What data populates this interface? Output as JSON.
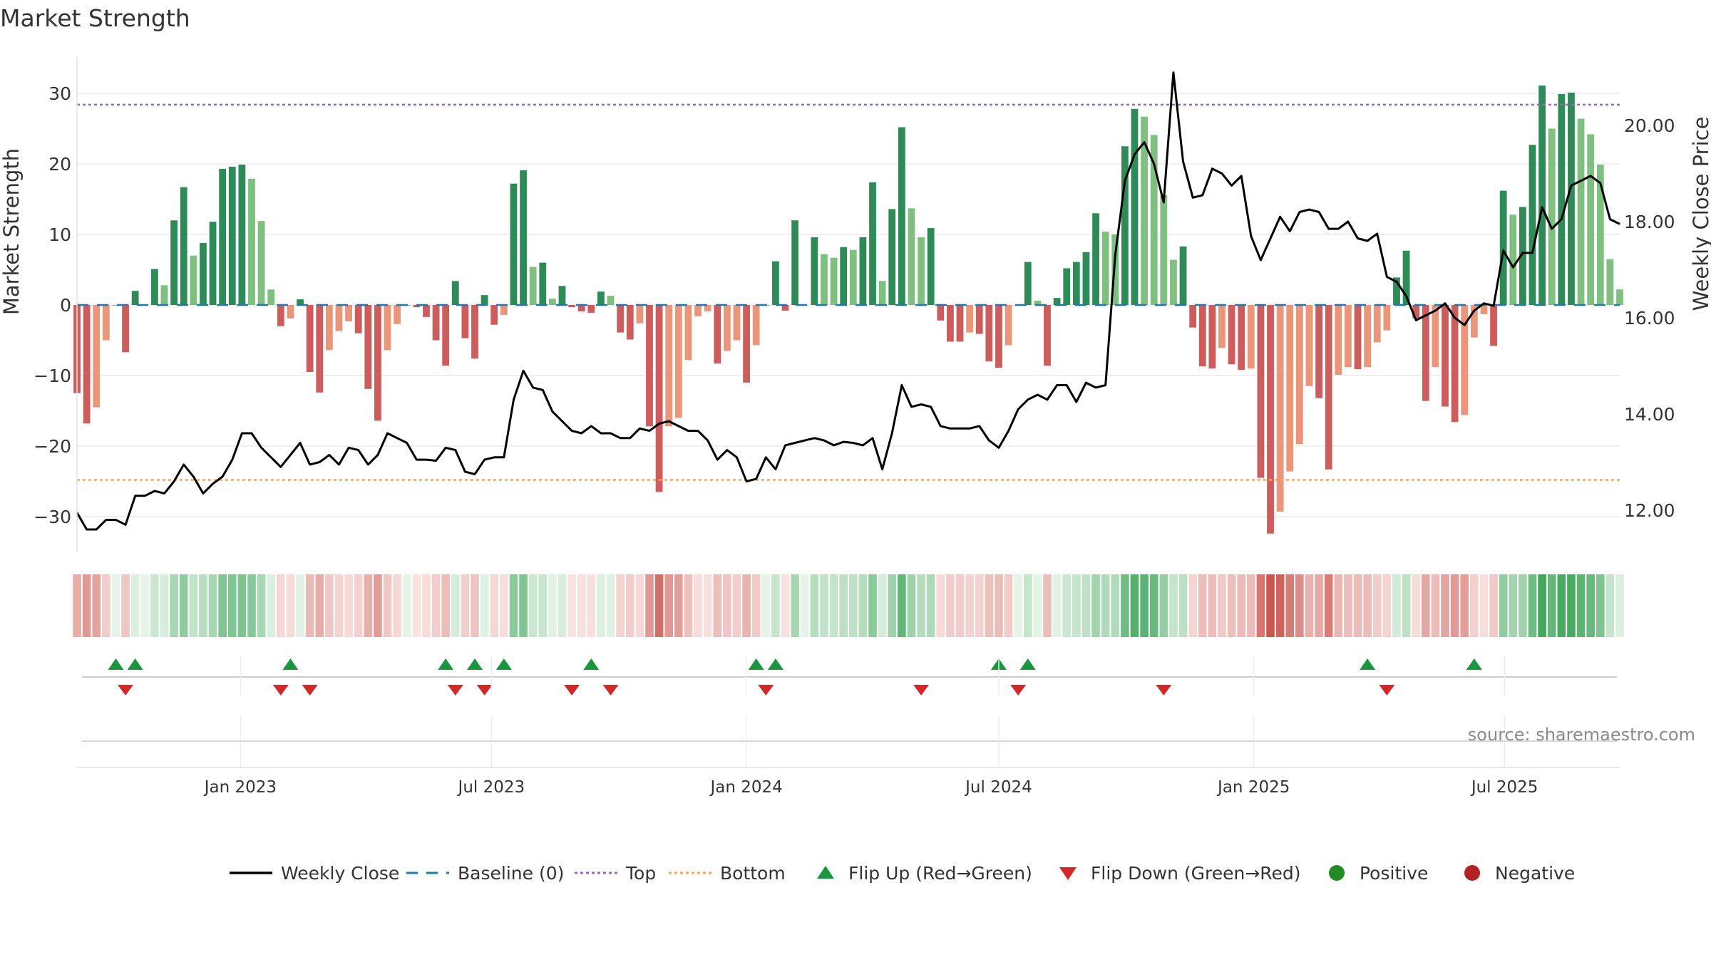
{
  "title": "Market Strength",
  "source_text": "source: sharemaestro.com",
  "colors": {
    "strong_green": "#2e8b57",
    "light_green": "#7fbf7f",
    "strong_red": "#cd5c5c",
    "light_red": "#e9967a",
    "baseline": "#1f77b4",
    "top": "#9467bd",
    "bottom": "#f4a460",
    "price": "#000000",
    "flip_up": "#1a9641",
    "flip_down": "#d62728",
    "positive": "#228b22",
    "negative": "#b22222"
  },
  "legend": [
    {
      "key": "weekly_close",
      "label": "Weekly Close",
      "symbol": "line"
    },
    {
      "key": "baseline",
      "label": "Baseline (0)",
      "symbol": "dash"
    },
    {
      "key": "top",
      "label": "Top",
      "symbol": "dot"
    },
    {
      "key": "bottom",
      "label": "Bottom",
      "symbol": "dot"
    },
    {
      "key": "flip_up",
      "label": "Flip Up (Red→Green)",
      "symbol": "triangle-up"
    },
    {
      "key": "flip_down",
      "label": "Flip Down (Green→Red)",
      "symbol": "triangle-down"
    },
    {
      "key": "positive",
      "label": "Positive",
      "symbol": "circle"
    },
    {
      "key": "negative",
      "label": "Negative",
      "symbol": "circle"
    }
  ],
  "chart_data": {
    "type": "bar",
    "x_start": "2022-09-05",
    "x_interval_days": 7,
    "x_ticks": [
      "Jan 2023",
      "Jul 2023",
      "Jan 2024",
      "Jul 2024",
      "Jan 2025",
      "Jul 2025"
    ],
    "x_tick_dates": [
      "2023-01-01",
      "2023-07-01",
      "2024-01-01",
      "2024-07-01",
      "2025-01-01",
      "2025-07-01"
    ],
    "x_range": [
      "2022-09-05",
      "2025-09-22"
    ],
    "ylabel": "Market Strength",
    "ylim": [
      -35,
      36
    ],
    "y_ticks": [
      30,
      20,
      10,
      0,
      -10,
      -20,
      -30
    ],
    "y_tick_labels": [
      "30",
      "20",
      "10",
      "0",
      "−10",
      "−20",
      "−30"
    ],
    "y2label": "Weekly Close Price",
    "y2lim": [
      11.1,
      21.9
    ],
    "y2_ticks": [
      20,
      18,
      16,
      14,
      12
    ],
    "y2_tick_labels": [
      "20.00",
      "18.00",
      "16.00",
      "14.00",
      "12.00"
    ],
    "top_level": 28.4,
    "bottom_level": -24.8,
    "baseline": 0,
    "strength": [
      -12.5,
      -16.8,
      -14.5,
      -5,
      0,
      -6.7,
      2,
      0,
      5.1,
      2.8,
      12,
      16.7,
      7,
      8.8,
      11.8,
      19.3,
      19.6,
      19.9,
      17.9,
      11.9,
      2.2,
      -3,
      -1.9,
      0.8,
      -9.5,
      -12.4,
      -6.4,
      -3.7,
      -2.3,
      -4,
      -11.9,
      -16.4,
      -6.4,
      -2.7,
      0,
      -0.3,
      -1.7,
      -5,
      -8.6,
      3.4,
      -4.7,
      -7.6,
      1.4,
      -2.8,
      -1.4,
      17.2,
      19.1,
      5.4,
      6,
      0.9,
      2.7,
      -0.3,
      -0.9,
      -1.1,
      1.9,
      1.3,
      -3.9,
      -4.9,
      -2.6,
      -17.2,
      -26.5,
      -17.2,
      -16,
      -7.8,
      -1.6,
      -0.9,
      -8.3,
      -6.5,
      -5,
      -11,
      -5.7,
      0,
      6.2,
      -0.8,
      12,
      0,
      9.6,
      7.2,
      6.7,
      8.2,
      7.8,
      9.6,
      17.4,
      3.4,
      13.6,
      25.2,
      13.7,
      9.6,
      10.9,
      -2.2,
      -5.2,
      -5.2,
      -3.9,
      -4.1,
      -8,
      -8.9,
      -5.7,
      0,
      6.1,
      0.6,
      -8.6,
      1,
      5.2,
      6.1,
      7.5,
      13,
      10.4,
      10,
      22.5,
      27.8,
      26.7,
      24.1,
      15.6,
      6.4,
      8.3,
      -3.2,
      -8.7,
      -9,
      -6.1,
      -8.4,
      -9.2,
      -9,
      -24.5,
      -32.4,
      -29.3,
      -23.6,
      -19.7,
      -11.5,
      -13.2,
      -23.3,
      -9.9,
      -8.8,
      -9.1,
      -8.8,
      -5.3,
      -3.6,
      3.9,
      7.7,
      -1.9,
      -13.6,
      -8.8,
      -14.4,
      -16.6,
      -15.6,
      -4.6,
      -1.3,
      -5.8,
      16.2,
      12.8,
      13.9,
      22.7,
      31.1,
      25,
      29.9,
      30.1,
      26.4,
      24.2,
      19.9,
      6.5,
      2.2
    ],
    "weekly_close": [
      11.95,
      11.6,
      11.6,
      11.8,
      11.8,
      11.7,
      12.3,
      12.3,
      12.4,
      12.35,
      12.6,
      12.95,
      12.7,
      12.35,
      12.55,
      12.7,
      13.05,
      13.6,
      13.6,
      13.3,
      13.1,
      12.9,
      13.15,
      13.4,
      12.95,
      13.0,
      13.15,
      12.95,
      13.3,
      13.25,
      12.95,
      13.15,
      13.6,
      13.5,
      13.4,
      13.05,
      13.05,
      13.03,
      13.3,
      13.25,
      12.8,
      12.75,
      13.05,
      13.1,
      13.1,
      14.3,
      14.9,
      14.55,
      14.5,
      14.05,
      13.85,
      13.65,
      13.6,
      13.75,
      13.6,
      13.6,
      13.5,
      13.5,
      13.7,
      13.65,
      13.8,
      13.85,
      13.75,
      13.65,
      13.65,
      13.45,
      13.05,
      13.25,
      13.1,
      12.6,
      12.65,
      13.1,
      12.85,
      13.35,
      13.4,
      13.45,
      13.5,
      13.45,
      13.35,
      13.42,
      13.4,
      13.35,
      13.5,
      12.85,
      13.6,
      14.6,
      14.15,
      14.2,
      14.15,
      13.75,
      13.7,
      13.7,
      13.7,
      13.75,
      13.45,
      13.3,
      13.65,
      14.1,
      14.3,
      14.4,
      14.3,
      14.6,
      14.6,
      14.25,
      14.65,
      14.55,
      14.6,
      17.3,
      18.85,
      19.4,
      19.65,
      19.2,
      18.4,
      21.1,
      19.25,
      18.5,
      18.55,
      19.1,
      19.0,
      18.75,
      18.95,
      17.7,
      17.2,
      17.65,
      18.1,
      17.8,
      18.2,
      18.25,
      18.2,
      17.85,
      17.85,
      18.0,
      17.65,
      17.6,
      17.75,
      16.85,
      16.75,
      16.45,
      15.95,
      16.05,
      16.15,
      16.3,
      16.0,
      15.85,
      16.15,
      16.3,
      16.25,
      17.4,
      17.05,
      17.35,
      17.35,
      18.3,
      17.85,
      18.05,
      18.75,
      18.85,
      18.95,
      18.8,
      18.05,
      17.95
    ],
    "flip_up_index": [
      4,
      6,
      22,
      38,
      41,
      44,
      53,
      70,
      72,
      95,
      98,
      133,
      144
    ],
    "flip_down_index": [
      5,
      21,
      24,
      39,
      42,
      51,
      55,
      71,
      87,
      97,
      112,
      135
    ]
  }
}
